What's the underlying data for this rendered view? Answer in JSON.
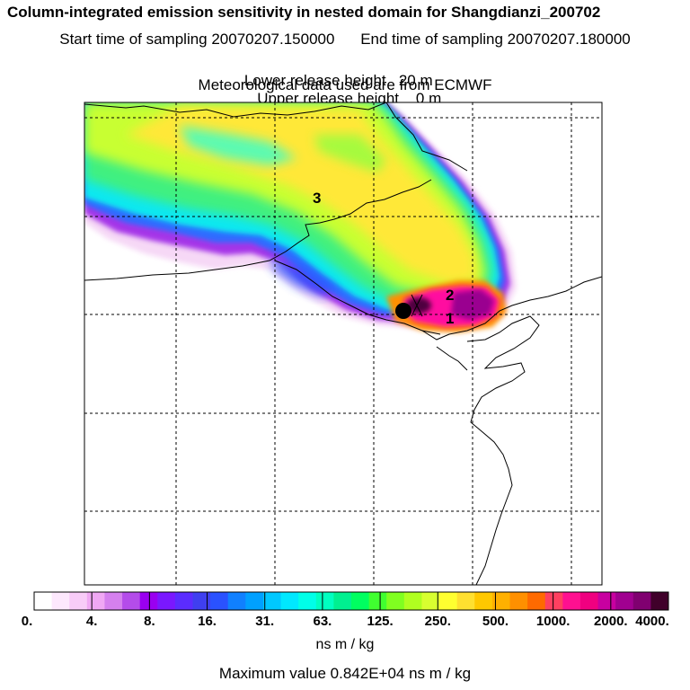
{
  "header": {
    "title": "Column-integrated emission sensitivity in nested domain for Shangdianzi_200702",
    "start_label": "Start time of sampling 20070207.150000",
    "end_label": "End time of sampling 20070207.180000",
    "lower_label": "Lower release height   20 m",
    "upper_label": "Upper release height    0 m",
    "met_label": "Meteorological data used are from ECMWF"
  },
  "map": {
    "markers": [
      {
        "label": "1"
      },
      {
        "label": "2"
      },
      {
        "label": "3"
      }
    ],
    "station_marker": "receptor-dot"
  },
  "colorbar": {
    "labels": [
      "0.",
      "4.",
      "8.",
      "16.",
      "31.",
      "63.",
      "125.",
      "250.",
      "500.",
      "1000.",
      "2000.",
      "4000."
    ],
    "colors": [
      "#ffffff",
      "#fde8fd",
      "#f8ccf8",
      "#f0a8f4",
      "#d580ee",
      "#b44cea",
      "#9a00f0",
      "#7a18ff",
      "#5b2cff",
      "#3f3ff0",
      "#2a52ff",
      "#1080ff",
      "#00a0ff",
      "#00c8ff",
      "#00e8ff",
      "#00ffe8",
      "#00ffc0",
      "#00f090",
      "#00ff60",
      "#40ff30",
      "#80ff20",
      "#b0ff20",
      "#d8ff30",
      "#ffff30",
      "#ffe030",
      "#ffc800",
      "#ffb000",
      "#ff9000",
      "#ff6a00",
      "#ff4060",
      "#ff1090",
      "#f00080",
      "#c800a0",
      "#a00090",
      "#800070",
      "#40002a"
    ],
    "units": "ns m / kg"
  },
  "footer": {
    "maxval": "Maximum value  0.842E+04 ns m / kg"
  }
}
